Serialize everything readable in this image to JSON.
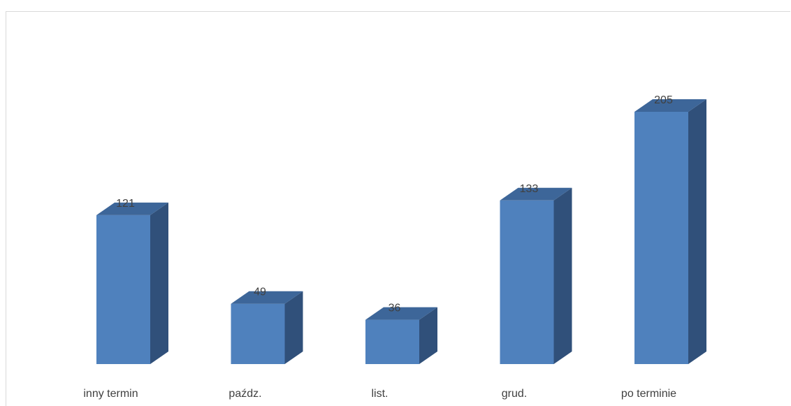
{
  "chart_data": {
    "type": "bar",
    "categories": [
      "inny termin",
      "paźdz.",
      "list.",
      "grud.",
      "po terminie"
    ],
    "values": [
      121,
      49,
      36,
      133,
      205
    ],
    "data_labels": [
      "121",
      "49",
      "36",
      "133",
      "205"
    ],
    "title": "",
    "xlabel": "",
    "ylabel": "",
    "ylim": [
      0,
      220
    ],
    "grid": false,
    "legend": "none",
    "style": "3d-column",
    "colors": {
      "front": "#4f81bd",
      "side": "#30507a",
      "top": "#3d6699",
      "label": "#404040",
      "frame": "#d9d9d9"
    }
  }
}
